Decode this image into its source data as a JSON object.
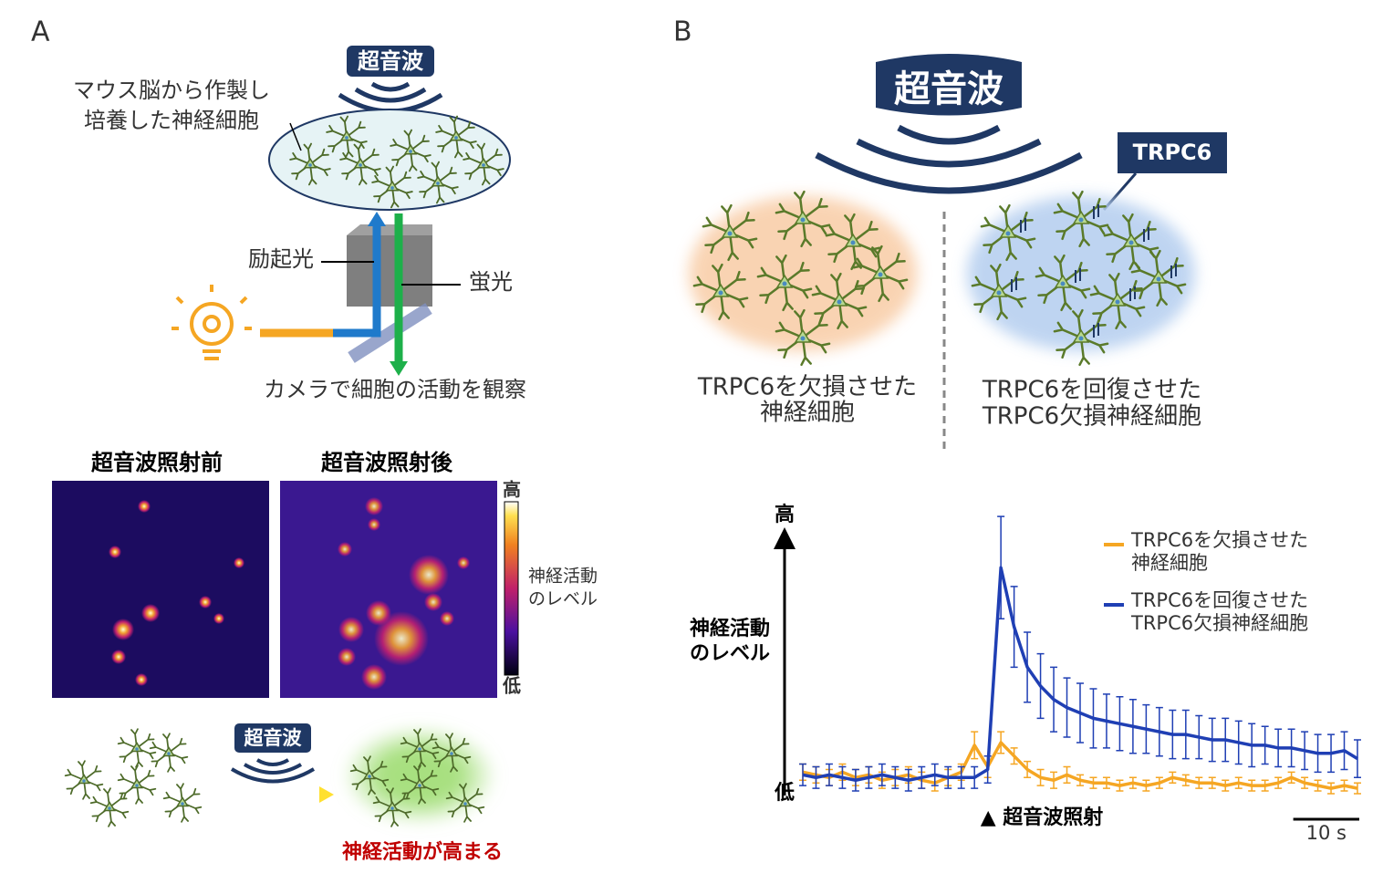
{
  "panel_a": {
    "label": "A",
    "ultrasound": "超音波",
    "culture_label": [
      "マウス脳から作製し",
      "培養した神経細胞"
    ],
    "excitation": "励起光",
    "fluorescence": "蛍光",
    "camera": "カメラで細胞の活動を観察",
    "before": "超音波照射前",
    "after": "超音波照射後",
    "colorbar_high": "高",
    "colorbar_low": "低",
    "colorbar_label": [
      "神経活動",
      "のレベル"
    ],
    "bottom_ultrasound": "超音波",
    "result": "神経活動が高まる"
  },
  "panel_b": {
    "label": "B",
    "ultrasound": "超音波",
    "trpc6": "TRPC6",
    "left_caption": [
      "TRPC6を欠損させた",
      "神経細胞"
    ],
    "right_caption": [
      "TRPC6を回復させた",
      "TRPC6欠損神経細胞"
    ]
  },
  "chart_data": {
    "type": "line",
    "y_label": [
      "神経活動",
      "のレベル"
    ],
    "y_high": "高",
    "y_low": "低",
    "annotation": "▲ 超音波照射",
    "scale_bar": {
      "value": 10,
      "label": "10 s"
    },
    "xlim": [
      0,
      84
    ],
    "ylim": [
      0,
      1
    ],
    "x": [
      0,
      2,
      4,
      6,
      8,
      10,
      12,
      14,
      16,
      18,
      20,
      22,
      24,
      26,
      28,
      30,
      32,
      34,
      36,
      38,
      40,
      42,
      44,
      46,
      48,
      50,
      52,
      54,
      56,
      58,
      60,
      62,
      64,
      66,
      68,
      70,
      72,
      74,
      76,
      78,
      80,
      82,
      84
    ],
    "series": [
      {
        "name": [
          "TRPC6を欠損させた",
          "神経細胞"
        ],
        "color": "#f5a623",
        "values": [
          0.08,
          0.07,
          0.06,
          0.08,
          0.06,
          0.07,
          0.05,
          0.06,
          0.07,
          0.05,
          0.04,
          0.06,
          0.08,
          0.18,
          0.1,
          0.19,
          0.14,
          0.09,
          0.06,
          0.05,
          0.07,
          0.05,
          0.04,
          0.04,
          0.03,
          0.04,
          0.03,
          0.04,
          0.06,
          0.05,
          0.04,
          0.04,
          0.03,
          0.04,
          0.03,
          0.03,
          0.04,
          0.06,
          0.04,
          0.03,
          0.02,
          0.03,
          0.02
        ],
        "errors": [
          0.03,
          0.03,
          0.03,
          0.03,
          0.03,
          0.03,
          0.03,
          0.03,
          0.03,
          0.03,
          0.03,
          0.03,
          0.03,
          0.05,
          0.04,
          0.04,
          0.03,
          0.03,
          0.03,
          0.03,
          0.03,
          0.02,
          0.02,
          0.02,
          0.02,
          0.02,
          0.02,
          0.02,
          0.02,
          0.02,
          0.02,
          0.02,
          0.02,
          0.02,
          0.02,
          0.02,
          0.02,
          0.02,
          0.02,
          0.02,
          0.02,
          0.02,
          0.02
        ]
      },
      {
        "name": [
          "TRPC6を回復させた",
          "TRPC6欠損神経細胞"
        ],
        "color": "#1f3fb4",
        "values": [
          0.07,
          0.06,
          0.07,
          0.06,
          0.05,
          0.06,
          0.07,
          0.06,
          0.05,
          0.06,
          0.07,
          0.06,
          0.06,
          0.06,
          0.09,
          0.84,
          0.62,
          0.47,
          0.4,
          0.35,
          0.32,
          0.3,
          0.28,
          0.27,
          0.26,
          0.25,
          0.24,
          0.23,
          0.22,
          0.22,
          0.21,
          0.2,
          0.2,
          0.19,
          0.18,
          0.18,
          0.17,
          0.17,
          0.16,
          0.15,
          0.15,
          0.16,
          0.13
        ],
        "errors": [
          0.04,
          0.04,
          0.04,
          0.04,
          0.04,
          0.04,
          0.04,
          0.04,
          0.04,
          0.04,
          0.04,
          0.04,
          0.04,
          0.04,
          0.05,
          0.19,
          0.15,
          0.13,
          0.12,
          0.12,
          0.11,
          0.11,
          0.11,
          0.1,
          0.1,
          0.1,
          0.09,
          0.09,
          0.09,
          0.09,
          0.08,
          0.08,
          0.08,
          0.08,
          0.08,
          0.07,
          0.07,
          0.07,
          0.07,
          0.07,
          0.07,
          0.07,
          0.07
        ]
      }
    ]
  }
}
